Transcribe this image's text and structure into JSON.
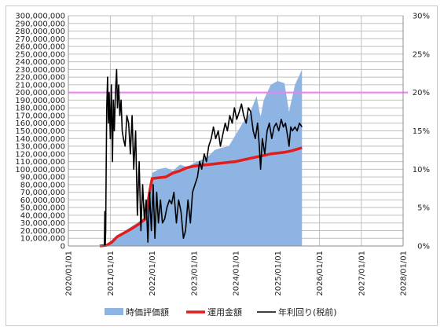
{
  "chart_data": {
    "type": "area",
    "title": "",
    "xlabel": "",
    "ylabel": "",
    "x_ticks": [
      "2020/01/01",
      "2021/01/01",
      "2022/01/01",
      "2023/01/01",
      "2024/01/01",
      "2025/01/01",
      "2026/01/01",
      "2027/01/01",
      "2028/01/01"
    ],
    "y_left_ticks": [
      "0",
      "10,000,000",
      "20,000,000",
      "30,000,000",
      "40,000,000",
      "50,000,000",
      "60,000,000",
      "70,000,000",
      "80,000,000",
      "90,000,000",
      "100,000,000",
      "110,000,000",
      "120,000,000",
      "130,000,000",
      "140,000,000",
      "150,000,000",
      "160,000,000",
      "170,000,000",
      "180,000,000",
      "190,000,000",
      "200,000,000",
      "210,000,000",
      "220,000,000",
      "230,000,000",
      "240,000,000",
      "250,000,000",
      "260,000,000",
      "270,000,000",
      "280,000,000",
      "290,000,000",
      "300,000,000"
    ],
    "y_right_ticks": [
      "0%",
      "5%",
      "10%",
      "15%",
      "20%",
      "25%",
      "30%"
    ],
    "ylim_left": [
      0,
      300000000
    ],
    "ylim_right": [
      0,
      0.3
    ],
    "grid": true,
    "legend_position": "bottom",
    "reference_line": {
      "value": 0.2,
      "axis": "right",
      "color": "#ee82ee"
    },
    "series": [
      {
        "name": "時価評価額",
        "kind": "area",
        "axis": "left",
        "color": "#8db4e2",
        "x": [
          "2020-10-01",
          "2020-12-01",
          "2021-01-15",
          "2021-03-01",
          "2021-05-01",
          "2021-07-01",
          "2021-09-01",
          "2021-11-01",
          "2021-12-15",
          "2022-01-01",
          "2022-03-01",
          "2022-05-01",
          "2022-07-01",
          "2022-09-01",
          "2022-11-01",
          "2023-01-01",
          "2023-03-01",
          "2023-05-01",
          "2023-07-01",
          "2023-09-01",
          "2023-11-01",
          "2024-01-01",
          "2024-03-01",
          "2024-05-01",
          "2024-07-01",
          "2024-08-05",
          "2024-09-01",
          "2024-11-01",
          "2025-01-01",
          "2025-03-01",
          "2025-04-10",
          "2025-06-01",
          "2025-08-01"
        ],
        "values": [
          0,
          2000000,
          8000000,
          14000000,
          19000000,
          25000000,
          31000000,
          38000000,
          75000000,
          95000000,
          100000000,
          102000000,
          98000000,
          106000000,
          103000000,
          108000000,
          112000000,
          116000000,
          125000000,
          128000000,
          130000000,
          145000000,
          160000000,
          172000000,
          195000000,
          168000000,
          190000000,
          210000000,
          215000000,
          212000000,
          175000000,
          210000000,
          230000000
        ]
      },
      {
        "name": "運用金額",
        "kind": "line",
        "axis": "left",
        "color": "#e31c1c",
        "x": [
          "2020-10-01",
          "2020-12-01",
          "2021-01-15",
          "2021-03-01",
          "2021-05-01",
          "2021-07-01",
          "2021-09-01",
          "2021-11-01",
          "2021-12-15",
          "2022-01-01",
          "2022-03-01",
          "2022-05-01",
          "2022-07-01",
          "2022-09-01",
          "2022-11-01",
          "2023-01-01",
          "2023-03-01",
          "2023-05-01",
          "2023-07-01",
          "2023-09-01",
          "2023-11-01",
          "2024-01-01",
          "2024-03-01",
          "2024-05-01",
          "2024-07-01",
          "2024-09-01",
          "2024-11-01",
          "2025-01-01",
          "2025-03-01",
          "2025-05-01",
          "2025-08-01"
        ],
        "values": [
          0,
          1000000,
          5000000,
          12000000,
          17000000,
          22000000,
          28000000,
          35000000,
          75000000,
          88000000,
          89000000,
          90000000,
          95000000,
          98000000,
          102000000,
          104000000,
          105000000,
          106000000,
          107000000,
          108000000,
          109000000,
          110000000,
          112000000,
          114000000,
          116000000,
          118000000,
          120000000,
          121000000,
          122000000,
          124000000,
          128000000
        ]
      },
      {
        "name": "年利回り(税前)",
        "kind": "line",
        "axis": "right",
        "color": "#000000",
        "x": [
          "2020-10-20",
          "2020-11-10",
          "2020-11-14",
          "2020-11-18",
          "2020-11-22",
          "2020-11-26",
          "2020-12-01",
          "2020-12-08",
          "2020-12-15",
          "2020-12-22",
          "2021-01-01",
          "2021-01-10",
          "2021-01-20",
          "2021-01-28",
          "2021-02-05",
          "2021-02-15",
          "2021-02-25",
          "2021-03-05",
          "2021-03-15",
          "2021-03-25",
          "2021-04-05",
          "2021-04-15",
          "2021-04-25",
          "2021-05-10",
          "2021-05-25",
          "2021-06-10",
          "2021-06-25",
          "2021-07-10",
          "2021-07-25",
          "2021-08-10",
          "2021-08-25",
          "2021-09-10",
          "2021-09-25",
          "2021-10-10",
          "2021-10-25",
          "2021-11-10",
          "2021-11-25",
          "2021-12-10",
          "2021-12-25",
          "2022-01-10",
          "2022-01-25",
          "2022-02-10",
          "2022-02-25",
          "2022-03-15",
          "2022-04-01",
          "2022-04-20",
          "2022-05-10",
          "2022-06-01",
          "2022-06-20",
          "2022-07-10",
          "2022-08-01",
          "2022-08-20",
          "2022-09-10",
          "2022-10-01",
          "2022-10-20",
          "2022-11-10",
          "2022-12-01",
          "2022-12-20",
          "2023-01-10",
          "2023-02-01",
          "2023-02-20",
          "2023-03-10",
          "2023-04-01",
          "2023-04-20",
          "2023-05-10",
          "2023-06-01",
          "2023-06-20",
          "2023-07-10",
          "2023-08-01",
          "2023-08-20",
          "2023-09-10",
          "2023-10-01",
          "2023-10-20",
          "2023-11-10",
          "2023-12-01",
          "2023-12-20",
          "2024-01-10",
          "2024-02-01",
          "2024-02-20",
          "2024-03-10",
          "2024-04-01",
          "2024-04-20",
          "2024-05-10",
          "2024-06-01",
          "2024-06-20",
          "2024-07-10",
          "2024-07-25",
          "2024-08-05",
          "2024-08-20",
          "2024-09-10",
          "2024-10-01",
          "2024-10-20",
          "2024-11-10",
          "2024-12-01",
          "2024-12-20",
          "2025-01-10",
          "2025-02-01",
          "2025-02-20",
          "2025-03-10",
          "2025-04-01",
          "2025-04-10",
          "2025-04-25",
          "2025-05-10",
          "2025-06-01",
          "2025-06-20",
          "2025-07-10",
          "2025-08-01"
        ],
        "values": [
          0,
          0,
          0.045,
          0,
          0.02,
          0.1,
          0.18,
          0.22,
          0.16,
          0.2,
          0.14,
          0.21,
          0.11,
          0.19,
          0.15,
          0.2,
          0.23,
          0.18,
          0.21,
          0.17,
          0.19,
          0.15,
          0.14,
          0.13,
          0.17,
          0.16,
          0.12,
          0.17,
          0.1,
          0.15,
          0.04,
          0.11,
          0.02,
          0.08,
          0.035,
          0.06,
          0.005,
          0.07,
          0.02,
          0.08,
          0.01,
          0.07,
          0.03,
          0.06,
          0.03,
          0.035,
          0.05,
          0.06,
          0.055,
          0.07,
          0.03,
          0.06,
          0.045,
          0.01,
          0.02,
          0.06,
          0.03,
          0.07,
          0.08,
          0.09,
          0.11,
          0.1,
          0.12,
          0.11,
          0.13,
          0.14,
          0.155,
          0.14,
          0.15,
          0.13,
          0.145,
          0.16,
          0.15,
          0.17,
          0.16,
          0.18,
          0.165,
          0.175,
          0.185,
          0.17,
          0.16,
          0.18,
          0.175,
          0.15,
          0.14,
          0.16,
          0.13,
          0.1,
          0.14,
          0.12,
          0.15,
          0.16,
          0.14,
          0.155,
          0.16,
          0.15,
          0.165,
          0.155,
          0.16,
          0.14,
          0.13,
          0.155,
          0.15,
          0.155,
          0.15,
          0.16,
          0.155
        ]
      }
    ]
  }
}
